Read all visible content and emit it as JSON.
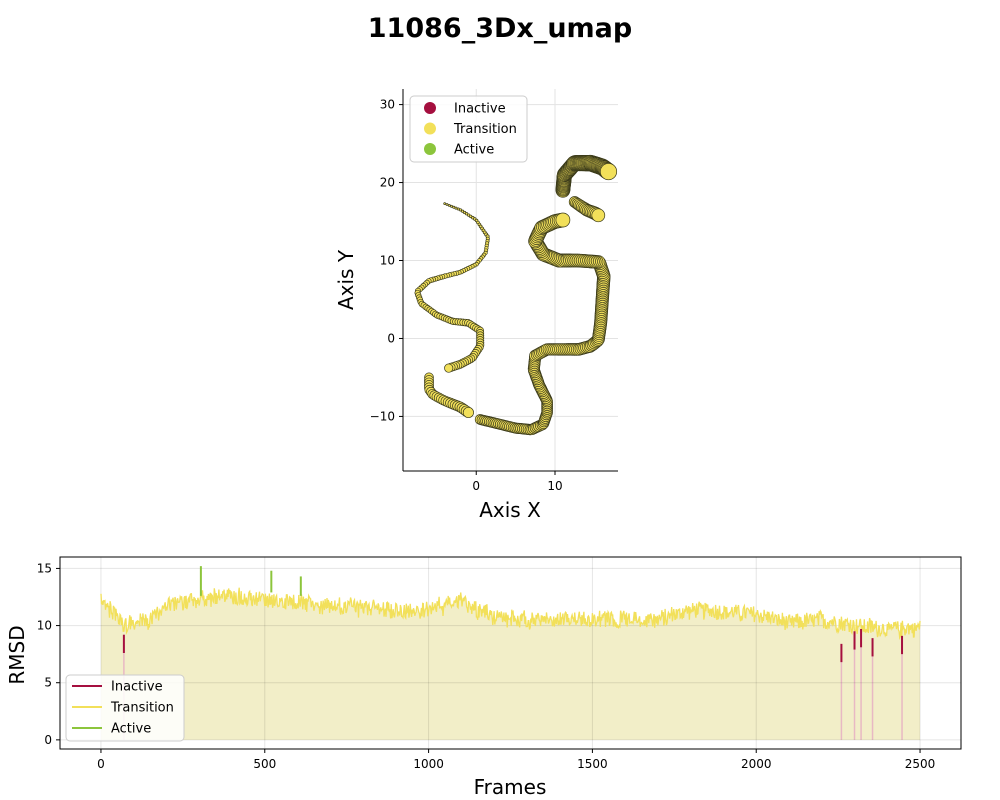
{
  "figure": {
    "title": "11086_3Dx_umap"
  },
  "chart_data": [
    {
      "type": "scatter",
      "name": "umap",
      "xlabel": "Axis X",
      "ylabel": "Axis Y",
      "xlim": [
        -9.3,
        18
      ],
      "ylim": [
        -17,
        32
      ],
      "xticks": [
        0,
        10
      ],
      "yticks": [
        -10,
        0,
        10,
        20,
        30
      ],
      "grid": true,
      "legend_position": "top-left",
      "legend": [
        "Inactive",
        "Transition",
        "Active"
      ],
      "colors": {
        "Inactive": "#a50f3f",
        "Transition": "#f2e05a",
        "Active": "#8cc53c",
        "edge": "#3a3a1a"
      },
      "curve_left": [
        [
          -4,
          17.3
        ],
        [
          -2,
          16.5
        ],
        [
          0,
          15.2
        ],
        [
          1.5,
          13
        ],
        [
          1.2,
          11
        ],
        [
          0,
          9.5
        ],
        [
          -2,
          8.5
        ],
        [
          -4,
          8
        ],
        [
          -6,
          7.4
        ],
        [
          -7.5,
          6
        ],
        [
          -7,
          4.5
        ],
        [
          -5,
          3
        ],
        [
          -3,
          2.2
        ],
        [
          -1,
          2
        ],
        [
          0.5,
          1
        ],
        [
          0.5,
          -1
        ],
        [
          -0.5,
          -2.5
        ],
        [
          -2,
          -3.3
        ],
        [
          -3.5,
          -3.8
        ]
      ],
      "curve_bottom_left": [
        [
          -6,
          -5
        ],
        [
          -6,
          -6.5
        ],
        [
          -5.5,
          -7.2
        ],
        [
          -4,
          -8
        ],
        [
          -2,
          -8.8
        ],
        [
          -1,
          -9.5
        ]
      ],
      "curve_right": [
        [
          0.5,
          -10.4
        ],
        [
          3,
          -11
        ],
        [
          5,
          -11.5
        ],
        [
          7,
          -11.7
        ],
        [
          8.5,
          -11
        ],
        [
          9,
          -9.5
        ],
        [
          9,
          -8
        ],
        [
          8,
          -6
        ],
        [
          7.3,
          -4
        ],
        [
          7.5,
          -2.2
        ],
        [
          9,
          -1.4
        ],
        [
          11,
          -1.4
        ],
        [
          13,
          -1.4
        ],
        [
          14.5,
          -1
        ],
        [
          15.5,
          -0.2
        ],
        [
          15.8,
          2
        ],
        [
          16,
          5
        ],
        [
          16.2,
          8
        ],
        [
          15.6,
          9.8
        ],
        [
          13,
          10
        ],
        [
          10.5,
          10
        ],
        [
          8.5,
          10.8
        ],
        [
          7.5,
          12.5
        ],
        [
          8.3,
          14.2
        ],
        [
          10,
          15
        ],
        [
          11,
          15.2
        ]
      ],
      "curve_top": [
        [
          11,
          19
        ],
        [
          11.2,
          21
        ],
        [
          12.5,
          22.5
        ],
        [
          14.5,
          22.5
        ],
        [
          16,
          22
        ],
        [
          16.8,
          21.4
        ]
      ],
      "curve_top_small": [
        [
          12.5,
          17.5
        ],
        [
          14,
          16.5
        ],
        [
          15.2,
          16
        ],
        [
          15.5,
          15.8
        ]
      ]
    },
    {
      "type": "line",
      "name": "rmsd",
      "xlabel": "Frames",
      "ylabel": "RMSD",
      "xlim": [
        -125,
        2625
      ],
      "ylim": [
        -0.8,
        16
      ],
      "xticks": [
        0,
        500,
        1000,
        1500,
        2000,
        2500
      ],
      "yticks": [
        0,
        5,
        10,
        15
      ],
      "grid": true,
      "legend_position": "bottom-left",
      "legend": [
        "Inactive",
        "Transition",
        "Active"
      ],
      "colors": {
        "Inactive": "#a50f3f",
        "Transition": "#f2e05a",
        "Active": "#8cc53c",
        "fill": "#f2eec8"
      },
      "envelope": [
        [
          0,
          12.5
        ],
        [
          25,
          11.5
        ],
        [
          75,
          10
        ],
        [
          150,
          10.5
        ],
        [
          200,
          11.8
        ],
        [
          300,
          12.2
        ],
        [
          400,
          12.6
        ],
        [
          500,
          12.2
        ],
        [
          600,
          12
        ],
        [
          700,
          11.6
        ],
        [
          800,
          11.6
        ],
        [
          900,
          11.2
        ],
        [
          1000,
          11.4
        ],
        [
          1100,
          12.2
        ],
        [
          1150,
          11.2
        ],
        [
          1200,
          10.8
        ],
        [
          1300,
          10.4
        ],
        [
          1400,
          10.6
        ],
        [
          1500,
          10.5
        ],
        [
          1600,
          10.6
        ],
        [
          1700,
          10.5
        ],
        [
          1800,
          11.4
        ],
        [
          1900,
          11.2
        ],
        [
          2000,
          11
        ],
        [
          2100,
          10.2
        ],
        [
          2200,
          10.5
        ],
        [
          2300,
          10
        ],
        [
          2400,
          9.7
        ],
        [
          2500,
          9.8
        ]
      ],
      "amplitude": 0.7,
      "inactive_segments": [
        [
          70,
          8.3
        ],
        [
          2260,
          7.5
        ],
        [
          2300,
          8.6
        ],
        [
          2320,
          8.8
        ],
        [
          2355,
          8
        ],
        [
          2445,
          8.2
        ]
      ],
      "active_segments": [
        [
          305,
          12.6,
          15.2
        ],
        [
          520,
          12.9,
          14.8
        ],
        [
          610,
          12.6,
          14.3
        ]
      ]
    }
  ]
}
